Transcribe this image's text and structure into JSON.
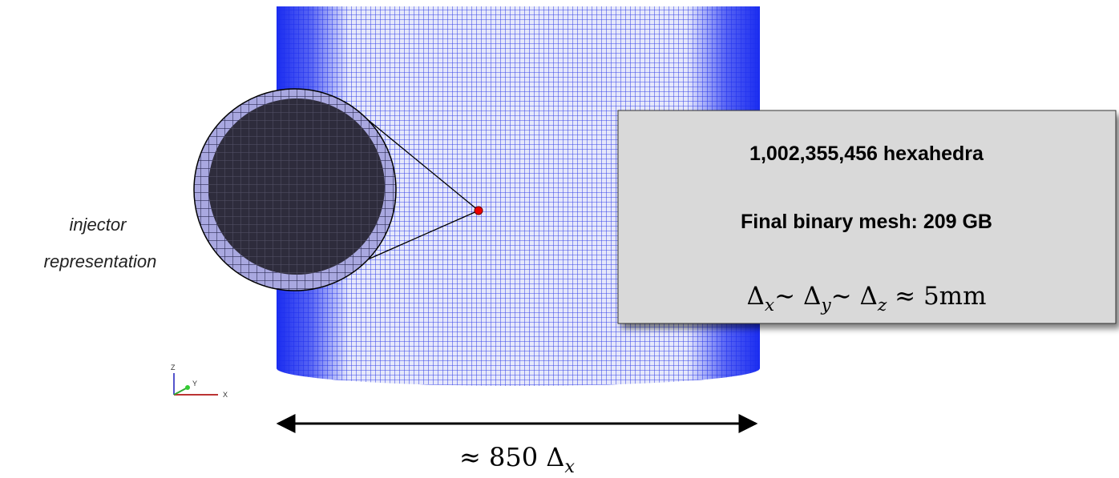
{
  "annotation": {
    "lines": [
      "injector",
      "representation"
    ]
  },
  "info_box": {
    "lines": [
      "1,002,355,456 hexahedra",
      "Final binary mesh: 209 GB"
    ],
    "formula": [
      {
        "t": "Δ",
        "s": "x"
      },
      {
        "t": "∼ Δ",
        "s": "y"
      },
      {
        "t": "∼ Δ",
        "s": "z"
      },
      {
        "t": " ≈ 5mm"
      }
    ]
  },
  "width_label": [
    {
      "t": "≈ 850 Δ",
      "s": "x"
    }
  ],
  "axes_triad": {
    "z": "Z",
    "y": "Y",
    "x": "X"
  }
}
